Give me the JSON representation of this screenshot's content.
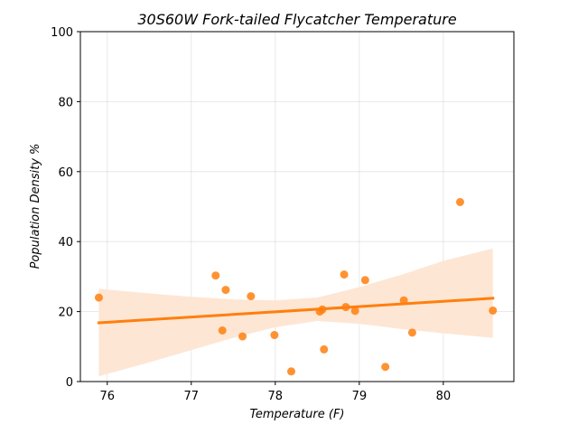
{
  "chart_data": {
    "type": "scatter",
    "title": "30S60W Fork-tailed Flycatcher Temperature",
    "xlabel": "Temperature (F)",
    "ylabel": "Population Density %",
    "xlim": [
      75.68,
      80.84
    ],
    "ylim": [
      0,
      100
    ],
    "xticks": [
      "76",
      "77",
      "78",
      "79",
      "80"
    ],
    "yticks": [
      "0",
      "20",
      "40",
      "60",
      "80",
      "100"
    ],
    "grid": true,
    "colors": {
      "points": "#ff7f0e",
      "fit_line": "#ff7f0e",
      "confidence_band": "#fee6d4"
    },
    "points": [
      {
        "x": 75.9,
        "y": 24.0
      },
      {
        "x": 77.29,
        "y": 30.3
      },
      {
        "x": 77.37,
        "y": 14.6
      },
      {
        "x": 77.41,
        "y": 26.2
      },
      {
        "x": 77.61,
        "y": 12.9
      },
      {
        "x": 77.71,
        "y": 24.4
      },
      {
        "x": 77.99,
        "y": 13.3
      },
      {
        "x": 78.19,
        "y": 2.9
      },
      {
        "x": 78.53,
        "y": 20.0
      },
      {
        "x": 78.56,
        "y": 20.6
      },
      {
        "x": 78.58,
        "y": 9.2
      },
      {
        "x": 78.82,
        "y": 30.6
      },
      {
        "x": 78.84,
        "y": 21.3
      },
      {
        "x": 78.95,
        "y": 20.2
      },
      {
        "x": 79.07,
        "y": 29.0
      },
      {
        "x": 79.31,
        "y": 4.2
      },
      {
        "x": 79.53,
        "y": 23.2
      },
      {
        "x": 79.63,
        "y": 14.0
      },
      {
        "x": 80.2,
        "y": 51.3
      },
      {
        "x": 80.59,
        "y": 20.3
      }
    ],
    "fit_line": {
      "x": [
        75.9,
        80.59
      ],
      "y": [
        16.8,
        23.8
      ]
    },
    "confidence_band": {
      "x": [
        75.9,
        76.5,
        77.0,
        77.5,
        78.0,
        78.5,
        79.0,
        79.5,
        80.0,
        80.59
      ],
      "upper": [
        26.5,
        25.2,
        24.2,
        23.5,
        23.2,
        24.0,
        27.0,
        30.5,
        34.5,
        38.0
      ],
      "lower": [
        1.5,
        5.5,
        9.0,
        12.5,
        15.5,
        17.3,
        16.5,
        15.0,
        13.8,
        12.5
      ]
    }
  }
}
